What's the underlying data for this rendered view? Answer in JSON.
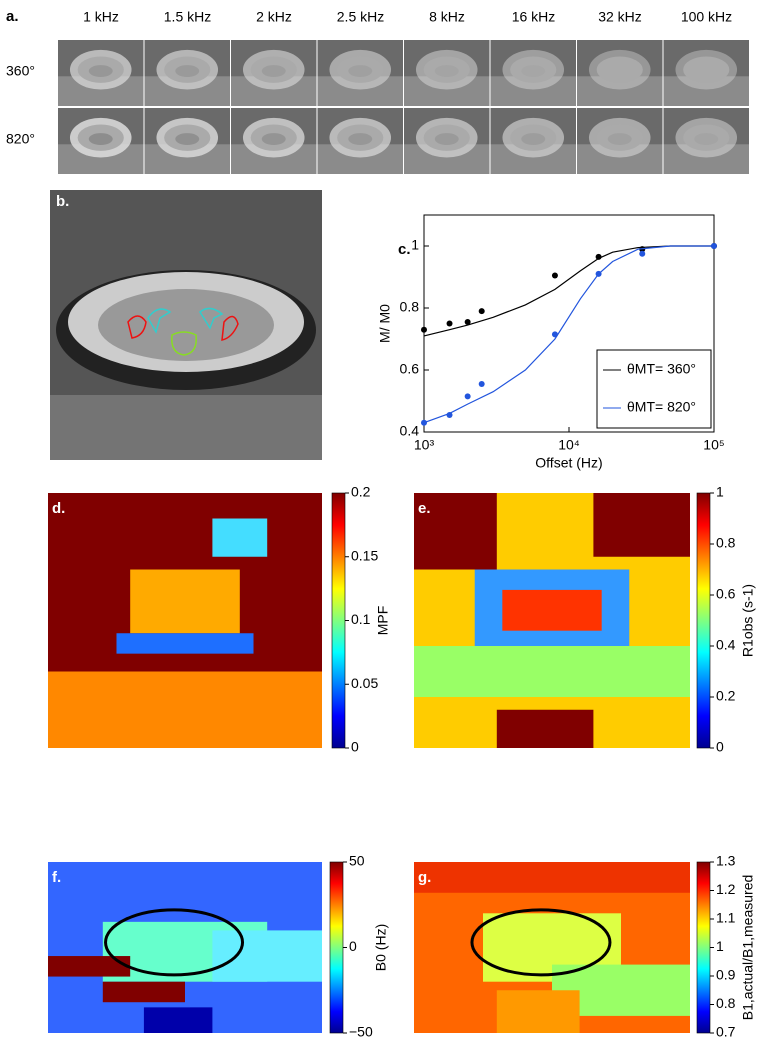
{
  "panel_a": {
    "label": "a.",
    "columns": [
      "1 kHz",
      "1.5 kHz",
      "2 kHz",
      "2.5 kHz",
      "8 kHz",
      "16 kHz",
      "32 kHz",
      "100 kHz"
    ],
    "rows": [
      "360°",
      "820°"
    ]
  },
  "panel_b": {
    "label": "b."
  },
  "chart_data": {
    "type": "scatter",
    "label": "c.",
    "xlabel": "Offset (Hz)",
    "ylabel": "M/ M0",
    "xlog": true,
    "xlim": [
      1000,
      100000
    ],
    "xticks": [
      {
        "value": 1000,
        "label": "10³"
      },
      {
        "value": 10000,
        "label": "10⁴"
      },
      {
        "value": 100000,
        "label": "10⁵"
      }
    ],
    "ylim": [
      0.4,
      1.1
    ],
    "yticks": [
      0.4,
      0.6,
      0.8,
      1
    ],
    "legend": "lower right",
    "series": [
      {
        "name": "θMT= 360°",
        "color": "#000000",
        "x": [
          1000,
          1500,
          2000,
          2500,
          8000,
          16000,
          32000,
          100000
        ],
        "values": [
          0.73,
          0.75,
          0.755,
          0.79,
          0.905,
          0.965,
          0.99,
          1.0
        ],
        "fit_x": [
          1000,
          1500,
          2000,
          3000,
          5000,
          8000,
          12000,
          16000,
          20000,
          30000,
          50000,
          100000
        ],
        "fit_values": [
          0.71,
          0.73,
          0.745,
          0.77,
          0.81,
          0.86,
          0.92,
          0.96,
          0.98,
          0.995,
          1.0,
          1.0
        ]
      },
      {
        "name": "θMT= 820°",
        "color": "#2255dd",
        "x": [
          1000,
          1500,
          2000,
          2500,
          8000,
          16000,
          32000,
          100000
        ],
        "values": [
          0.43,
          0.455,
          0.515,
          0.555,
          0.715,
          0.91,
          0.975,
          1.0
        ],
        "fit_x": [
          1000,
          1500,
          2000,
          3000,
          5000,
          8000,
          12000,
          16000,
          20000,
          30000,
          50000,
          100000
        ],
        "fit_values": [
          0.43,
          0.46,
          0.49,
          0.53,
          0.6,
          0.7,
          0.83,
          0.91,
          0.95,
          0.99,
          1.0,
          1.0
        ]
      }
    ]
  },
  "maps": [
    {
      "label": "d.",
      "colorbar_label": "MPF",
      "lim": [
        0,
        0.2
      ],
      "ticks": [
        0,
        0.05,
        0.1,
        0.15,
        0.2
      ]
    },
    {
      "label": "e.",
      "colorbar_label": "R1obs (s-1)",
      "lim": [
        0,
        1
      ],
      "ticks": [
        0,
        0.2,
        0.4,
        0.6,
        0.8,
        1
      ]
    },
    {
      "label": "f.",
      "colorbar_label": "B0 (Hz)",
      "lim": [
        -50,
        50
      ],
      "ticks": [
        {
          "value": -50,
          "label": "−50"
        },
        0,
        50
      ]
    },
    {
      "label": "g.",
      "colorbar_label": "B1,actual/B1,measured",
      "lim": [
        0.7,
        1.3
      ],
      "ticks": [
        0.7,
        0.8,
        0.9,
        1,
        1.1,
        1.2,
        1.3
      ]
    }
  ]
}
